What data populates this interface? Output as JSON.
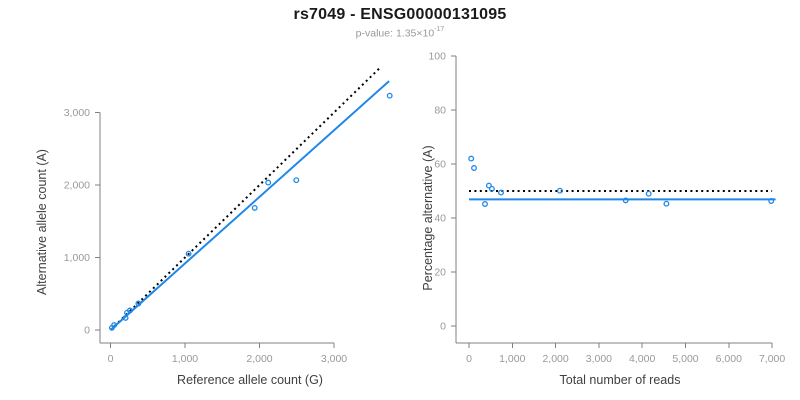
{
  "header": {
    "title": "rs7049 - ENSG00000131095",
    "pvalue_base": "p-value: 1.35×10",
    "pvalue_exponent": "-17"
  },
  "colors": {
    "background": "#FFFFFF",
    "title": "#1A1A1A",
    "subtitle": "#999999",
    "axis_line": "#808080",
    "tick_label": "#999999",
    "axis_title": "#404040",
    "accent_blue": "#1F87E8",
    "dotted_black": "#000000"
  },
  "chart_data": [
    {
      "type": "scatter",
      "name": "allele-count-scatter",
      "xlabel": "Reference allele count (G)",
      "ylabel": "Alternative allele count (A)",
      "xlim": [
        0,
        3740
      ],
      "ylim": [
        0,
        3620
      ],
      "grid": false,
      "xticks": [
        0,
        1000,
        2000,
        3000
      ],
      "xtick_labels": [
        "0",
        "1,000",
        "2,000",
        "3,000"
      ],
      "yticks": [
        0,
        1000,
        2000,
        3000
      ],
      "ytick_labels": [
        "0",
        "1,000",
        "2,000",
        "3,000"
      ],
      "point_color": "#1F87E8",
      "points": [
        [
          19,
          31
        ],
        [
          48,
          67
        ],
        [
          203,
          167
        ],
        [
          221,
          239
        ],
        [
          261,
          269
        ],
        [
          374,
          366
        ],
        [
          1048,
          1052
        ],
        [
          1936,
          1684
        ],
        [
          2117,
          2033
        ],
        [
          2494,
          2066
        ],
        [
          3748,
          3232
        ]
      ],
      "lines": [
        {
          "name": "identity-dotted-line",
          "style": "dotted",
          "color": "#000000",
          "from": [
            0,
            0
          ],
          "to": [
            3620,
            3620
          ]
        },
        {
          "name": "regression-line",
          "style": "solid",
          "color": "#1F87E8",
          "from": [
            0,
            0
          ],
          "to": [
            3740,
            3433
          ]
        }
      ]
    },
    {
      "type": "scatter",
      "name": "percentage-scatter",
      "xlabel": "Total number of reads",
      "ylabel": "Percentage alternative (A)",
      "xlim": [
        0,
        7080
      ],
      "ylim": [
        0,
        100
      ],
      "grid": false,
      "xticks": [
        0,
        1000,
        2000,
        3000,
        4000,
        5000,
        6000,
        7000
      ],
      "xtick_labels": [
        "0",
        "1,000",
        "2,000",
        "3,000",
        "4,000",
        "5,000",
        "6,000",
        "7,000"
      ],
      "yticks": [
        0,
        20,
        40,
        60,
        80,
        100
      ],
      "ytick_labels": [
        "0",
        "20",
        "40",
        "60",
        "80",
        "100"
      ],
      "point_color": "#1F87E8",
      "points": [
        [
          50,
          62
        ],
        [
          115,
          58.5
        ],
        [
          370,
          45.2
        ],
        [
          460,
          52
        ],
        [
          530,
          50.8
        ],
        [
          740,
          49.4
        ],
        [
          2100,
          50.1
        ],
        [
          3620,
          46.5
        ],
        [
          4150,
          49
        ],
        [
          4560,
          45.3
        ],
        [
          6980,
          46.3
        ]
      ],
      "lines": [
        {
          "name": "fifty-percent-dotted-line",
          "style": "dotted",
          "color": "#000000",
          "from": [
            0,
            50
          ],
          "to": [
            7000,
            50
          ]
        },
        {
          "name": "mean-percentage-line",
          "style": "solid",
          "color": "#1F87E8",
          "from": [
            0,
            46.9
          ],
          "to": [
            7080,
            46.9
          ]
        }
      ]
    }
  ]
}
